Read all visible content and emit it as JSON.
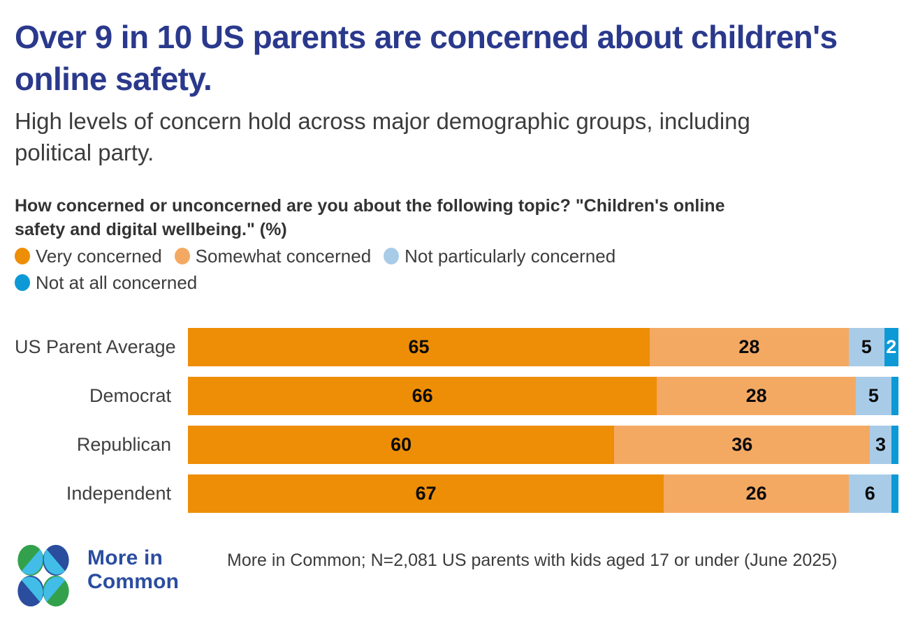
{
  "header": {
    "title": "Over 9 in 10 US parents are concerned about children's online safety.",
    "subtitle": "High levels of concern hold across major demographic groups, including political party."
  },
  "chart_data": {
    "type": "bar",
    "variant": "horizontal-stacked",
    "title": "How concerned or unconcerned are you about the following topic? \"Children's online safety and digital wellbeing.\" (%)",
    "categories": [
      "US Parent Average",
      "Democrat",
      "Republican",
      "Independent"
    ],
    "series": [
      {
        "name": "Very concerned",
        "color": "#EE8E06",
        "label_color": "#0B0B0B",
        "values": [
          65,
          66,
          60,
          67
        ]
      },
      {
        "name": "Somewhat concerned",
        "color": "#F4A963",
        "label_color": "#0B0B0B",
        "values": [
          28,
          28,
          36,
          26
        ]
      },
      {
        "name": "Not particularly concerned",
        "color": "#A8CBE8",
        "label_color": "#0B0B0B",
        "values": [
          5,
          5,
          3,
          6
        ]
      },
      {
        "name": "Not at all concerned",
        "color": "#0C99D6",
        "label_color": "#FFFFFF",
        "values": [
          2,
          1,
          1,
          1
        ]
      }
    ],
    "xlim": [
      0,
      100
    ],
    "min_label_value": 2,
    "legend_position": "top",
    "grid": false
  },
  "footer": {
    "logo_text": "More in Common",
    "source": "More in Common; N=2,081 US parents with kids aged 17 or under (June 2025)"
  },
  "colors": {
    "background": "#FFFFFF",
    "title": "#2A398C",
    "text": "#3C3C3C",
    "question": "#333333",
    "category_label": "#3F3F3F",
    "logo_blue": "#2B4DA0",
    "logo_green": "#33A14C",
    "logo_navy": "#2A4D9E",
    "logo_cyan": "#41BDE8"
  }
}
